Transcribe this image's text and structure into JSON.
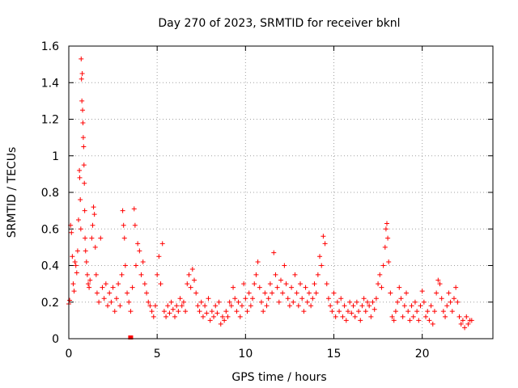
{
  "chart_data": {
    "type": "scatter",
    "title": "Day 270 of 2023, SRMTID for receiver bknl",
    "xlabel": "GPS time / hours",
    "ylabel": "SRMTID / TECUs",
    "xlim": [
      0,
      24
    ],
    "ylim": [
      0,
      1.6
    ],
    "x_ticks": [
      0,
      5,
      10,
      15,
      20
    ],
    "x_tick_labels": [
      "0",
      "5",
      "10",
      "15",
      "20"
    ],
    "y_ticks": [
      0,
      0.2,
      0.4,
      0.6,
      0.8,
      1.0,
      1.2,
      1.4,
      1.6
    ],
    "y_tick_labels": [
      "0",
      "0.2",
      "0.4",
      "0.6",
      "0.8",
      "1",
      "1.2",
      "1.4",
      "1.6"
    ],
    "grid": true,
    "marker": "+",
    "color": "#ff0000",
    "outlier_marker": {
      "x": 3.5,
      "y": 0.0,
      "shape": "square"
    },
    "series": [
      {
        "name": "SRMTID",
        "points": [
          [
            0.0,
            0.19
          ],
          [
            0.05,
            0.21
          ],
          [
            0.1,
            0.62
          ],
          [
            0.15,
            0.58
          ],
          [
            0.2,
            0.45
          ],
          [
            0.25,
            0.3
          ],
          [
            0.3,
            0.26
          ],
          [
            0.35,
            0.42
          ],
          [
            0.4,
            0.4
          ],
          [
            0.45,
            0.36
          ],
          [
            0.5,
            0.48
          ],
          [
            0.55,
            0.65
          ],
          [
            0.6,
            0.92
          ],
          [
            0.62,
            0.88
          ],
          [
            0.65,
            0.76
          ],
          [
            0.68,
            0.6
          ],
          [
            0.7,
            1.53
          ],
          [
            0.72,
            1.42
          ],
          [
            0.74,
            1.3
          ],
          [
            0.76,
            1.45
          ],
          [
            0.78,
            1.25
          ],
          [
            0.8,
            1.18
          ],
          [
            0.82,
            1.1
          ],
          [
            0.84,
            1.05
          ],
          [
            0.86,
            0.95
          ],
          [
            0.88,
            0.85
          ],
          [
            0.9,
            0.7
          ],
          [
            0.92,
            0.55
          ],
          [
            0.95,
            0.48
          ],
          [
            1.0,
            0.42
          ],
          [
            1.05,
            0.35
          ],
          [
            1.1,
            0.3
          ],
          [
            1.15,
            0.28
          ],
          [
            1.2,
            0.32
          ],
          [
            1.3,
            0.55
          ],
          [
            1.35,
            0.62
          ],
          [
            1.4,
            0.72
          ],
          [
            1.45,
            0.68
          ],
          [
            1.5,
            0.5
          ],
          [
            1.55,
            0.35
          ],
          [
            1.6,
            0.25
          ],
          [
            1.7,
            0.2
          ],
          [
            1.8,
            0.55
          ],
          [
            1.9,
            0.28
          ],
          [
            2.0,
            0.22
          ],
          [
            2.1,
            0.3
          ],
          [
            2.2,
            0.18
          ],
          [
            2.3,
            0.25
          ],
          [
            2.4,
            0.2
          ],
          [
            2.5,
            0.28
          ],
          [
            2.6,
            0.15
          ],
          [
            2.7,
            0.22
          ],
          [
            2.8,
            0.3
          ],
          [
            2.9,
            0.18
          ],
          [
            3.0,
            0.35
          ],
          [
            3.05,
            0.7
          ],
          [
            3.1,
            0.62
          ],
          [
            3.15,
            0.55
          ],
          [
            3.2,
            0.4
          ],
          [
            3.3,
            0.25
          ],
          [
            3.4,
            0.2
          ],
          [
            3.5,
            0.15
          ],
          [
            3.6,
            0.28
          ],
          [
            3.7,
            0.71
          ],
          [
            3.75,
            0.62
          ],
          [
            3.8,
            0.4
          ],
          [
            3.9,
            0.52
          ],
          [
            4.0,
            0.48
          ],
          [
            4.1,
            0.35
          ],
          [
            4.2,
            0.42
          ],
          [
            4.3,
            0.3
          ],
          [
            4.4,
            0.25
          ],
          [
            4.5,
            0.2
          ],
          [
            4.6,
            0.18
          ],
          [
            4.7,
            0.15
          ],
          [
            4.8,
            0.12
          ],
          [
            4.9,
            0.18
          ],
          [
            5.0,
            0.35
          ],
          [
            5.1,
            0.45
          ],
          [
            5.2,
            0.3
          ],
          [
            5.3,
            0.52
          ],
          [
            5.4,
            0.15
          ],
          [
            5.5,
            0.12
          ],
          [
            5.6,
            0.18
          ],
          [
            5.7,
            0.14
          ],
          [
            5.8,
            0.2
          ],
          [
            5.9,
            0.16
          ],
          [
            6.0,
            0.12
          ],
          [
            6.1,
            0.18
          ],
          [
            6.2,
            0.15
          ],
          [
            6.3,
            0.22
          ],
          [
            6.4,
            0.18
          ],
          [
            6.5,
            0.2
          ],
          [
            6.6,
            0.15
          ],
          [
            6.7,
            0.3
          ],
          [
            6.8,
            0.35
          ],
          [
            6.9,
            0.28
          ],
          [
            7.0,
            0.38
          ],
          [
            7.1,
            0.32
          ],
          [
            7.2,
            0.25
          ],
          [
            7.3,
            0.18
          ],
          [
            7.4,
            0.15
          ],
          [
            7.5,
            0.2
          ],
          [
            7.6,
            0.12
          ],
          [
            7.7,
            0.18
          ],
          [
            7.8,
            0.14
          ],
          [
            7.9,
            0.22
          ],
          [
            8.0,
            0.1
          ],
          [
            8.1,
            0.15
          ],
          [
            8.2,
            0.12
          ],
          [
            8.3,
            0.18
          ],
          [
            8.4,
            0.14
          ],
          [
            8.5,
            0.2
          ],
          [
            8.6,
            0.08
          ],
          [
            8.7,
            0.12
          ],
          [
            8.8,
            0.1
          ],
          [
            8.9,
            0.15
          ],
          [
            9.0,
            0.12
          ],
          [
            9.1,
            0.2
          ],
          [
            9.2,
            0.18
          ],
          [
            9.3,
            0.28
          ],
          [
            9.4,
            0.22
          ],
          [
            9.5,
            0.15
          ],
          [
            9.6,
            0.2
          ],
          [
            9.7,
            0.12
          ],
          [
            9.8,
            0.18
          ],
          [
            9.9,
            0.3
          ],
          [
            10.0,
            0.22
          ],
          [
            10.1,
            0.15
          ],
          [
            10.2,
            0.25
          ],
          [
            10.3,
            0.18
          ],
          [
            10.4,
            0.22
          ],
          [
            10.5,
            0.3
          ],
          [
            10.6,
            0.35
          ],
          [
            10.7,
            0.42
          ],
          [
            10.8,
            0.28
          ],
          [
            10.9,
            0.2
          ],
          [
            11.0,
            0.15
          ],
          [
            11.1,
            0.25
          ],
          [
            11.2,
            0.18
          ],
          [
            11.3,
            0.22
          ],
          [
            11.4,
            0.3
          ],
          [
            11.5,
            0.25
          ],
          [
            11.6,
            0.47
          ],
          [
            11.7,
            0.35
          ],
          [
            11.8,
            0.28
          ],
          [
            11.9,
            0.2
          ],
          [
            12.0,
            0.32
          ],
          [
            12.1,
            0.25
          ],
          [
            12.2,
            0.4
          ],
          [
            12.3,
            0.3
          ],
          [
            12.4,
            0.22
          ],
          [
            12.5,
            0.18
          ],
          [
            12.6,
            0.28
          ],
          [
            12.7,
            0.2
          ],
          [
            12.8,
            0.35
          ],
          [
            12.9,
            0.25
          ],
          [
            13.0,
            0.18
          ],
          [
            13.1,
            0.3
          ],
          [
            13.2,
            0.22
          ],
          [
            13.3,
            0.15
          ],
          [
            13.4,
            0.28
          ],
          [
            13.5,
            0.2
          ],
          [
            13.6,
            0.25
          ],
          [
            13.7,
            0.18
          ],
          [
            13.8,
            0.22
          ],
          [
            13.9,
            0.3
          ],
          [
            14.0,
            0.25
          ],
          [
            14.1,
            0.35
          ],
          [
            14.2,
            0.45
          ],
          [
            14.3,
            0.4
          ],
          [
            14.4,
            0.56
          ],
          [
            14.5,
            0.52
          ],
          [
            14.6,
            0.3
          ],
          [
            14.7,
            0.22
          ],
          [
            14.8,
            0.18
          ],
          [
            14.9,
            0.15
          ],
          [
            15.0,
            0.25
          ],
          [
            15.1,
            0.12
          ],
          [
            15.2,
            0.2
          ],
          [
            15.3,
            0.15
          ],
          [
            15.4,
            0.22
          ],
          [
            15.5,
            0.12
          ],
          [
            15.6,
            0.18
          ],
          [
            15.7,
            0.1
          ],
          [
            15.8,
            0.15
          ],
          [
            15.9,
            0.2
          ],
          [
            16.0,
            0.14
          ],
          [
            16.1,
            0.18
          ],
          [
            16.2,
            0.12
          ],
          [
            16.3,
            0.2
          ],
          [
            16.4,
            0.15
          ],
          [
            16.5,
            0.1
          ],
          [
            16.6,
            0.18
          ],
          [
            16.7,
            0.22
          ],
          [
            16.8,
            0.15
          ],
          [
            16.9,
            0.2
          ],
          [
            17.0,
            0.18
          ],
          [
            17.1,
            0.12
          ],
          [
            17.2,
            0.2
          ],
          [
            17.3,
            0.16
          ],
          [
            17.4,
            0.22
          ],
          [
            17.5,
            0.3
          ],
          [
            17.6,
            0.35
          ],
          [
            17.7,
            0.28
          ],
          [
            17.8,
            0.4
          ],
          [
            17.9,
            0.5
          ],
          [
            17.95,
            0.6
          ],
          [
            18.0,
            0.63
          ],
          [
            18.05,
            0.55
          ],
          [
            18.1,
            0.42
          ],
          [
            18.2,
            0.25
          ],
          [
            18.3,
            0.12
          ],
          [
            18.4,
            0.1
          ],
          [
            18.5,
            0.15
          ],
          [
            18.6,
            0.2
          ],
          [
            18.7,
            0.28
          ],
          [
            18.8,
            0.22
          ],
          [
            18.9,
            0.12
          ],
          [
            19.0,
            0.18
          ],
          [
            19.1,
            0.25
          ],
          [
            19.2,
            0.15
          ],
          [
            19.3,
            0.1
          ],
          [
            19.4,
            0.18
          ],
          [
            19.5,
            0.12
          ],
          [
            19.6,
            0.2
          ],
          [
            19.7,
            0.15
          ],
          [
            19.8,
            0.1
          ],
          [
            19.9,
            0.18
          ],
          [
            20.0,
            0.26
          ],
          [
            20.1,
            0.2
          ],
          [
            20.2,
            0.12
          ],
          [
            20.3,
            0.15
          ],
          [
            20.4,
            0.1
          ],
          [
            20.5,
            0.18
          ],
          [
            20.6,
            0.08
          ],
          [
            20.7,
            0.15
          ],
          [
            20.8,
            0.25
          ],
          [
            20.9,
            0.32
          ],
          [
            21.0,
            0.3
          ],
          [
            21.1,
            0.22
          ],
          [
            21.2,
            0.15
          ],
          [
            21.3,
            0.12
          ],
          [
            21.4,
            0.18
          ],
          [
            21.5,
            0.25
          ],
          [
            21.6,
            0.2
          ],
          [
            21.7,
            0.15
          ],
          [
            21.8,
            0.22
          ],
          [
            21.9,
            0.28
          ],
          [
            22.0,
            0.2
          ],
          [
            22.1,
            0.12
          ],
          [
            22.2,
            0.08
          ],
          [
            22.3,
            0.1
          ],
          [
            22.4,
            0.06
          ],
          [
            22.5,
            0.12
          ],
          [
            22.6,
            0.08
          ],
          [
            22.7,
            0.1
          ],
          [
            22.8,
            0.1
          ]
        ]
      }
    ]
  }
}
